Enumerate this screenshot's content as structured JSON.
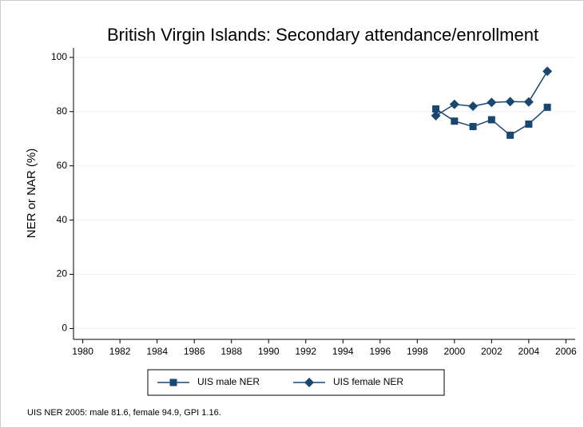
{
  "chart_data": {
    "type": "line",
    "title": "British Virgin Islands: Secondary attendance/enrollment",
    "y_label": "NER or NAR (%)",
    "note": "UIS NER 2005: male 81.6, female 94.9, GPI 1.16.",
    "x": [
      1999,
      2000,
      2001,
      2002,
      2003,
      2004,
      2005
    ],
    "series": [
      {
        "name": "UIS male NER",
        "color": "#1a476f",
        "marker": "square",
        "values": [
          81,
          76.5,
          74.5,
          77,
          71.3,
          75.4,
          81.6
        ]
      },
      {
        "name": "UIS female NER",
        "color": "#1a476f",
        "marker": "diamond",
        "values": [
          78.5,
          82.7,
          82,
          83.4,
          83.7,
          83.6,
          94.9
        ]
      }
    ],
    "xlim": [
      1979.5,
      2006.5
    ],
    "xticks": [
      1980,
      1982,
      1984,
      1986,
      1988,
      1990,
      1992,
      1994,
      1996,
      1998,
      2000,
      2002,
      2004,
      2006
    ],
    "ylim": [
      -4,
      103.5
    ],
    "yticks": [
      0,
      20,
      40,
      60,
      80,
      100
    ],
    "grid": true
  }
}
